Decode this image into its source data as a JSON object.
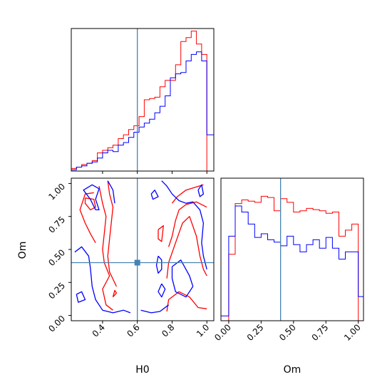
{
  "chart_data": {
    "type": "corner",
    "parameters": [
      "H0",
      "Om"
    ],
    "truths": {
      "H0": 0.6,
      "Om": 0.4
    },
    "colors": {
      "series_a": "#ff0000",
      "series_b": "#0000ff",
      "truth": "#4682b4"
    },
    "x_axis_H0": {
      "label": "H0",
      "range": [
        0.22,
        1.04
      ],
      "ticks": [
        0.4,
        0.6,
        0.8,
        1.0
      ],
      "tick_labels": [
        "0.4",
        "0.6",
        "0.8",
        "1.0"
      ]
    },
    "x_axis_Om": {
      "label": "Om",
      "range": [
        -0.06,
        1.04
      ],
      "ticks": [
        0.0,
        0.25,
        0.5,
        0.75,
        1.0
      ],
      "tick_labels": [
        "0.00",
        "0.25",
        "0.50",
        "0.75",
        "1.00"
      ]
    },
    "y_axis_Om": {
      "label": "Om",
      "range": [
        -0.04,
        1.04
      ],
      "ticks": [
        0.0,
        0.25,
        0.5,
        0.75,
        1.0
      ],
      "tick_labels": [
        "0.00",
        "0.25",
        "0.50",
        "0.75",
        "1.00"
      ]
    },
    "hist_H0": {
      "bin_edges": [
        0.22,
        0.25,
        0.28,
        0.31,
        0.34,
        0.37,
        0.4,
        0.43,
        0.46,
        0.49,
        0.52,
        0.55,
        0.58,
        0.61,
        0.64,
        0.67,
        0.7,
        0.73,
        0.76,
        0.79,
        0.82,
        0.85,
        0.88,
        0.91,
        0.94,
        0.97,
        1.0
      ],
      "series_a_counts": [
        2,
        3,
        5,
        6,
        8,
        14,
        16,
        18,
        20,
        25,
        28,
        32,
        35,
        42,
        55,
        56,
        57,
        65,
        70,
        70,
        82,
        100,
        103,
        108,
        98,
        90
      ],
      "series_b_counts": [
        1,
        3,
        4,
        6,
        7,
        10,
        14,
        16,
        15,
        20,
        22,
        26,
        30,
        34,
        37,
        40,
        45,
        50,
        58,
        72,
        75,
        76,
        85,
        90,
        92,
        85
      ],
      "series_b_tail": 28
    },
    "hist_Om": {
      "bin_edges": [
        -0.06,
        0.0,
        0.05,
        0.1,
        0.15,
        0.2,
        0.25,
        0.3,
        0.35,
        0.4,
        0.45,
        0.5,
        0.55,
        0.6,
        0.65,
        0.7,
        0.75,
        0.8,
        0.85,
        0.9,
        0.95,
        1.0
      ],
      "series_a_counts": [
        0,
        55,
        97,
        100,
        99,
        98,
        103,
        102,
        91,
        101,
        98,
        90,
        91,
        93,
        92,
        91,
        89,
        90,
        70,
        75,
        80
      ],
      "series_b_counts": [
        4,
        70,
        95,
        90,
        80,
        69,
        72,
        67,
        65,
        62,
        70,
        63,
        57,
        63,
        67,
        60,
        69,
        60,
        51,
        57,
        57
      ],
      "series_b_tail": 20
    },
    "contours": [
      {
        "series": "series_a",
        "points": [
          [
            0.35,
            0.93
          ],
          [
            0.3,
            0.92
          ],
          [
            0.27,
            0.8
          ],
          [
            0.3,
            0.7
          ],
          [
            0.33,
            0.62
          ],
          [
            0.36,
            0.55
          ]
        ]
      },
      {
        "series": "series_a",
        "points": [
          [
            0.38,
            0.98
          ],
          [
            0.4,
            0.85
          ],
          [
            0.42,
            0.75
          ],
          [
            0.41,
            0.62
          ],
          [
            0.4,
            0.5
          ],
          [
            0.41,
            0.4
          ],
          [
            0.44,
            0.3
          ],
          [
            0.4,
            0.2
          ],
          [
            0.42,
            0.08
          ],
          [
            0.46,
            0.04
          ]
        ]
      },
      {
        "series": "series_a",
        "points": [
          [
            0.43,
            1.02
          ],
          [
            0.44,
            0.92
          ],
          [
            0.46,
            0.82
          ],
          [
            0.45,
            0.7
          ],
          [
            0.44,
            0.58
          ],
          [
            0.43,
            0.45
          ],
          [
            0.44,
            0.33
          ],
          [
            0.48,
            0.22
          ]
        ]
      },
      {
        "series": "series_a",
        "points": [
          [
            0.46,
            0.14
          ],
          [
            0.48,
            0.17
          ],
          [
            0.47,
            0.19
          ],
          [
            0.46,
            0.14
          ]
        ]
      },
      {
        "series": "series_a",
        "points": [
          [
            0.3,
            0.89
          ],
          [
            0.35,
            0.88
          ],
          [
            0.36,
            0.82
          ],
          [
            0.33,
            0.8
          ],
          [
            0.3,
            0.85
          ],
          [
            0.3,
            0.89
          ]
        ]
      },
      {
        "series": "series_a",
        "points": [
          [
            0.8,
            0.85
          ],
          [
            0.83,
            0.9
          ],
          [
            0.88,
            0.95
          ],
          [
            0.93,
            0.97
          ],
          [
            0.98,
            0.99
          ]
        ]
      },
      {
        "series": "series_a",
        "points": [
          [
            0.78,
            0.52
          ],
          [
            0.8,
            0.6
          ],
          [
            0.82,
            0.72
          ],
          [
            0.84,
            0.8
          ],
          [
            0.88,
            0.84
          ],
          [
            0.94,
            0.86
          ],
          [
            1.0,
            0.82
          ]
        ]
      },
      {
        "series": "series_a",
        "points": [
          [
            0.77,
            0.28
          ],
          [
            0.78,
            0.4
          ],
          [
            0.82,
            0.55
          ],
          [
            0.86,
            0.7
          ],
          [
            0.9,
            0.75
          ],
          [
            0.94,
            0.6
          ],
          [
            0.96,
            0.45
          ],
          [
            0.98,
            0.35
          ],
          [
            1.0,
            0.3
          ]
        ]
      },
      {
        "series": "series_a",
        "points": [
          [
            0.77,
            0.03
          ],
          [
            0.78,
            0.12
          ],
          [
            0.84,
            0.18
          ],
          [
            0.9,
            0.14
          ],
          [
            0.95,
            0.06
          ],
          [
            1.0,
            0.05
          ]
        ]
      },
      {
        "series": "series_a",
        "points": [
          [
            0.72,
            0.65
          ],
          [
            0.75,
            0.68
          ],
          [
            0.74,
            0.56
          ],
          [
            0.72,
            0.58
          ],
          [
            0.72,
            0.65
          ]
        ]
      },
      {
        "series": "series_b",
        "points": [
          [
            0.36,
            0.8
          ],
          [
            0.33,
            0.88
          ],
          [
            0.29,
            0.95
          ],
          [
            0.34,
            0.99
          ],
          [
            0.38,
            0.96
          ],
          [
            0.36,
            0.88
          ],
          [
            0.38,
            0.8
          ],
          [
            0.36,
            0.8
          ]
        ]
      },
      {
        "series": "series_b",
        "points": [
          [
            0.24,
            0.48
          ],
          [
            0.28,
            0.52
          ],
          [
            0.32,
            0.45
          ],
          [
            0.33,
            0.36
          ],
          [
            0.34,
            0.22
          ],
          [
            0.36,
            0.12
          ],
          [
            0.4,
            0.04
          ],
          [
            0.46,
            0.02
          ],
          [
            0.52,
            0.04
          ],
          [
            0.56,
            0.02
          ]
        ]
      },
      {
        "series": "series_b",
        "points": [
          [
            0.43,
            1.02
          ],
          [
            0.46,
            0.95
          ],
          [
            0.47,
            0.85
          ]
        ]
      },
      {
        "series": "series_b",
        "points": [
          [
            0.25,
            0.16
          ],
          [
            0.28,
            0.18
          ],
          [
            0.3,
            0.12
          ],
          [
            0.26,
            0.1
          ],
          [
            0.25,
            0.16
          ]
        ]
      },
      {
        "series": "series_b",
        "points": [
          [
            0.74,
            1.02
          ],
          [
            0.77,
            0.98
          ],
          [
            0.8,
            0.92
          ],
          [
            0.84,
            0.87
          ],
          [
            0.88,
            0.85
          ],
          [
            0.92,
            0.86
          ],
          [
            0.96,
            0.8
          ],
          [
            0.98,
            0.7
          ],
          [
            0.97,
            0.55
          ],
          [
            0.98,
            0.45
          ],
          [
            1.0,
            0.35
          ]
        ]
      },
      {
        "series": "series_b",
        "points": [
          [
            0.8,
            0.37
          ],
          [
            0.85,
            0.42
          ],
          [
            0.9,
            0.3
          ],
          [
            0.92,
            0.22
          ],
          [
            0.88,
            0.14
          ],
          [
            0.82,
            0.18
          ],
          [
            0.8,
            0.28
          ],
          [
            0.8,
            0.37
          ]
        ]
      },
      {
        "series": "series_b",
        "points": [
          [
            0.72,
            0.45
          ],
          [
            0.74,
            0.42
          ],
          [
            0.74,
            0.35
          ],
          [
            0.72,
            0.32
          ],
          [
            0.71,
            0.38
          ],
          [
            0.72,
            0.45
          ]
        ]
      },
      {
        "series": "series_b",
        "points": [
          [
            0.74,
            0.24
          ],
          [
            0.76,
            0.2
          ],
          [
            0.74,
            0.14
          ],
          [
            0.72,
            0.18
          ],
          [
            0.74,
            0.24
          ]
        ]
      },
      {
        "series": "series_b",
        "points": [
          [
            0.95,
            0.95
          ],
          [
            0.97,
            0.99
          ],
          [
            0.98,
            0.92
          ],
          [
            0.96,
            0.9
          ],
          [
            0.95,
            0.95
          ]
        ]
      },
      {
        "series": "series_b",
        "points": [
          [
            0.62,
            0.04
          ],
          [
            0.68,
            0.02
          ],
          [
            0.73,
            0.03
          ],
          [
            0.78,
            0.08
          ]
        ]
      },
      {
        "series": "series_b",
        "points": [
          [
            0.68,
            0.92
          ],
          [
            0.7,
            0.95
          ],
          [
            0.72,
            0.9
          ],
          [
            0.69,
            0.88
          ],
          [
            0.68,
            0.92
          ]
        ]
      }
    ]
  }
}
